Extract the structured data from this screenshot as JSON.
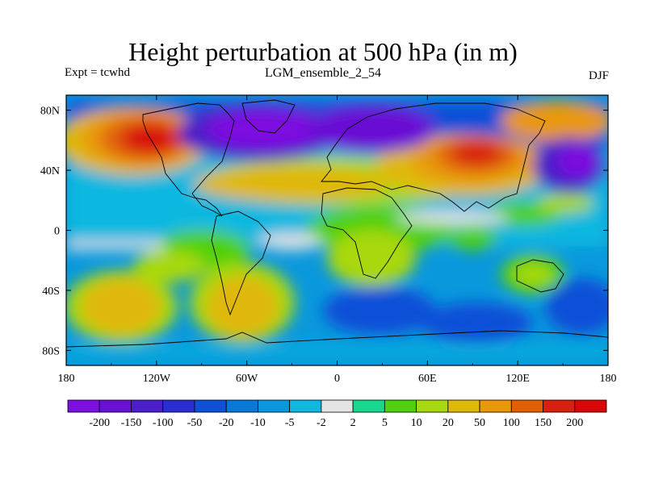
{
  "title": "Height perturbation at 500 hPa (in m)",
  "left_string": "Expt = tcwhd",
  "center_string": "LGM_ensemble_2_54",
  "right_string": "DJF",
  "lon_labels": [
    "180",
    "120W",
    "60W",
    "0",
    "60E",
    "120E",
    "180"
  ],
  "lat_labels": [
    "80N",
    "40N",
    "0",
    "40S",
    "80S"
  ],
  "colorbar": {
    "labels": [
      "-200",
      "-150",
      "-100",
      "-50",
      "-20",
      "-10",
      "-5",
      "-2",
      "2",
      "5",
      "10",
      "20",
      "50",
      "100",
      "150",
      "200"
    ],
    "colors": [
      "#7d10e0",
      "#6a10d4",
      "#4a1ec8",
      "#2a2ed0",
      "#1050d8",
      "#0a78d6",
      "#0a98dc",
      "#10b8e0",
      "#e4e4e4",
      "#18d890",
      "#50d010",
      "#a8d810",
      "#e0b808",
      "#e89808",
      "#e06008",
      "#d82010",
      "#d80808"
    ]
  },
  "chart_data": {
    "type": "heatmap",
    "title": "Height perturbation at 500 hPa (in m)",
    "projection": "cylindrical equidistant",
    "xlim": [
      -180,
      180
    ],
    "ylim": [
      -90,
      90
    ],
    "contour_levels": [
      -200,
      -150,
      -100,
      -50,
      -20,
      -10,
      -5,
      -2,
      2,
      5,
      10,
      20,
      50,
      100,
      150,
      200
    ],
    "field_features": [
      {
        "lon": -125,
        "lat": 60,
        "value": 200
      },
      {
        "lon": 85,
        "lat": 48,
        "value": 150
      },
      {
        "lon": -50,
        "lat": 65,
        "value": -200
      },
      {
        "lon": 30,
        "lat": 65,
        "value": -150
      },
      {
        "lon": 155,
        "lat": 45,
        "value": -100
      },
      {
        "lon": -140,
        "lat": -50,
        "value": 50
      },
      {
        "lon": -45,
        "lat": -45,
        "value": 50
      },
      {
        "lon": 130,
        "lat": -28,
        "value": 20
      }
    ]
  }
}
